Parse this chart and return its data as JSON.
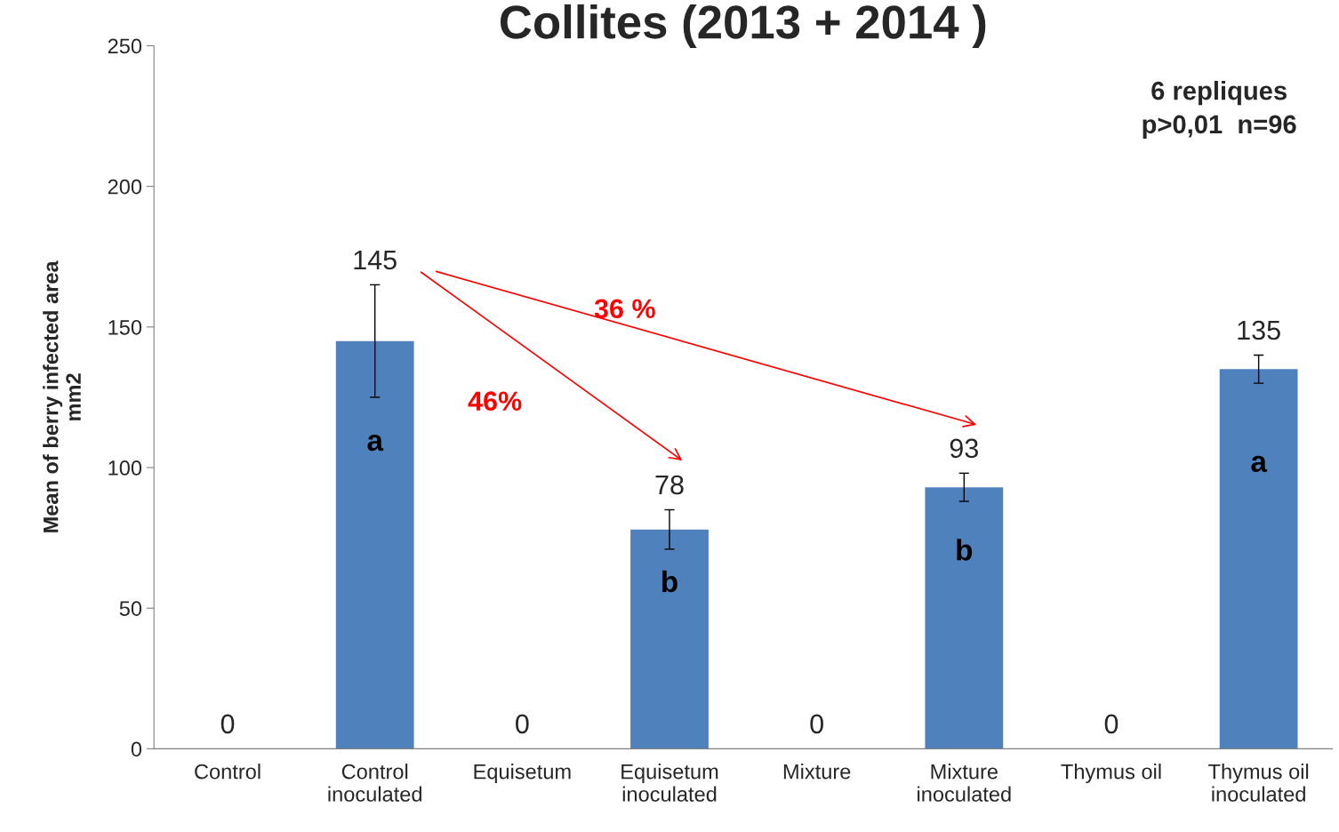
{
  "chart_data": {
    "type": "bar",
    "title": "Collites (2013 + 2014 )",
    "ylabel": "Mean of berry infected area\nmm2",
    "categories": [
      "Control",
      "Control\ninoculated",
      "Equisetum",
      "Equisetum\ninoculated",
      "Mixture",
      "Mixture\ninoculated",
      "Thymus oil",
      "Thymus oil\ninoculated"
    ],
    "values": [
      0,
      145,
      0,
      78,
      0,
      93,
      0,
      135
    ],
    "errors": [
      null,
      20,
      null,
      7,
      null,
      5,
      null,
      5
    ],
    "color": "#4f81bd",
    "ylim": [
      0,
      250
    ],
    "yticks": [
      0,
      50,
      100,
      150,
      200,
      250
    ],
    "grid": false,
    "data_labels": true,
    "annotations": [
      "a",
      "b",
      "b",
      "a",
      "46%",
      "36 %",
      "6 repliques\np>0,01  n=96"
    ]
  }
}
